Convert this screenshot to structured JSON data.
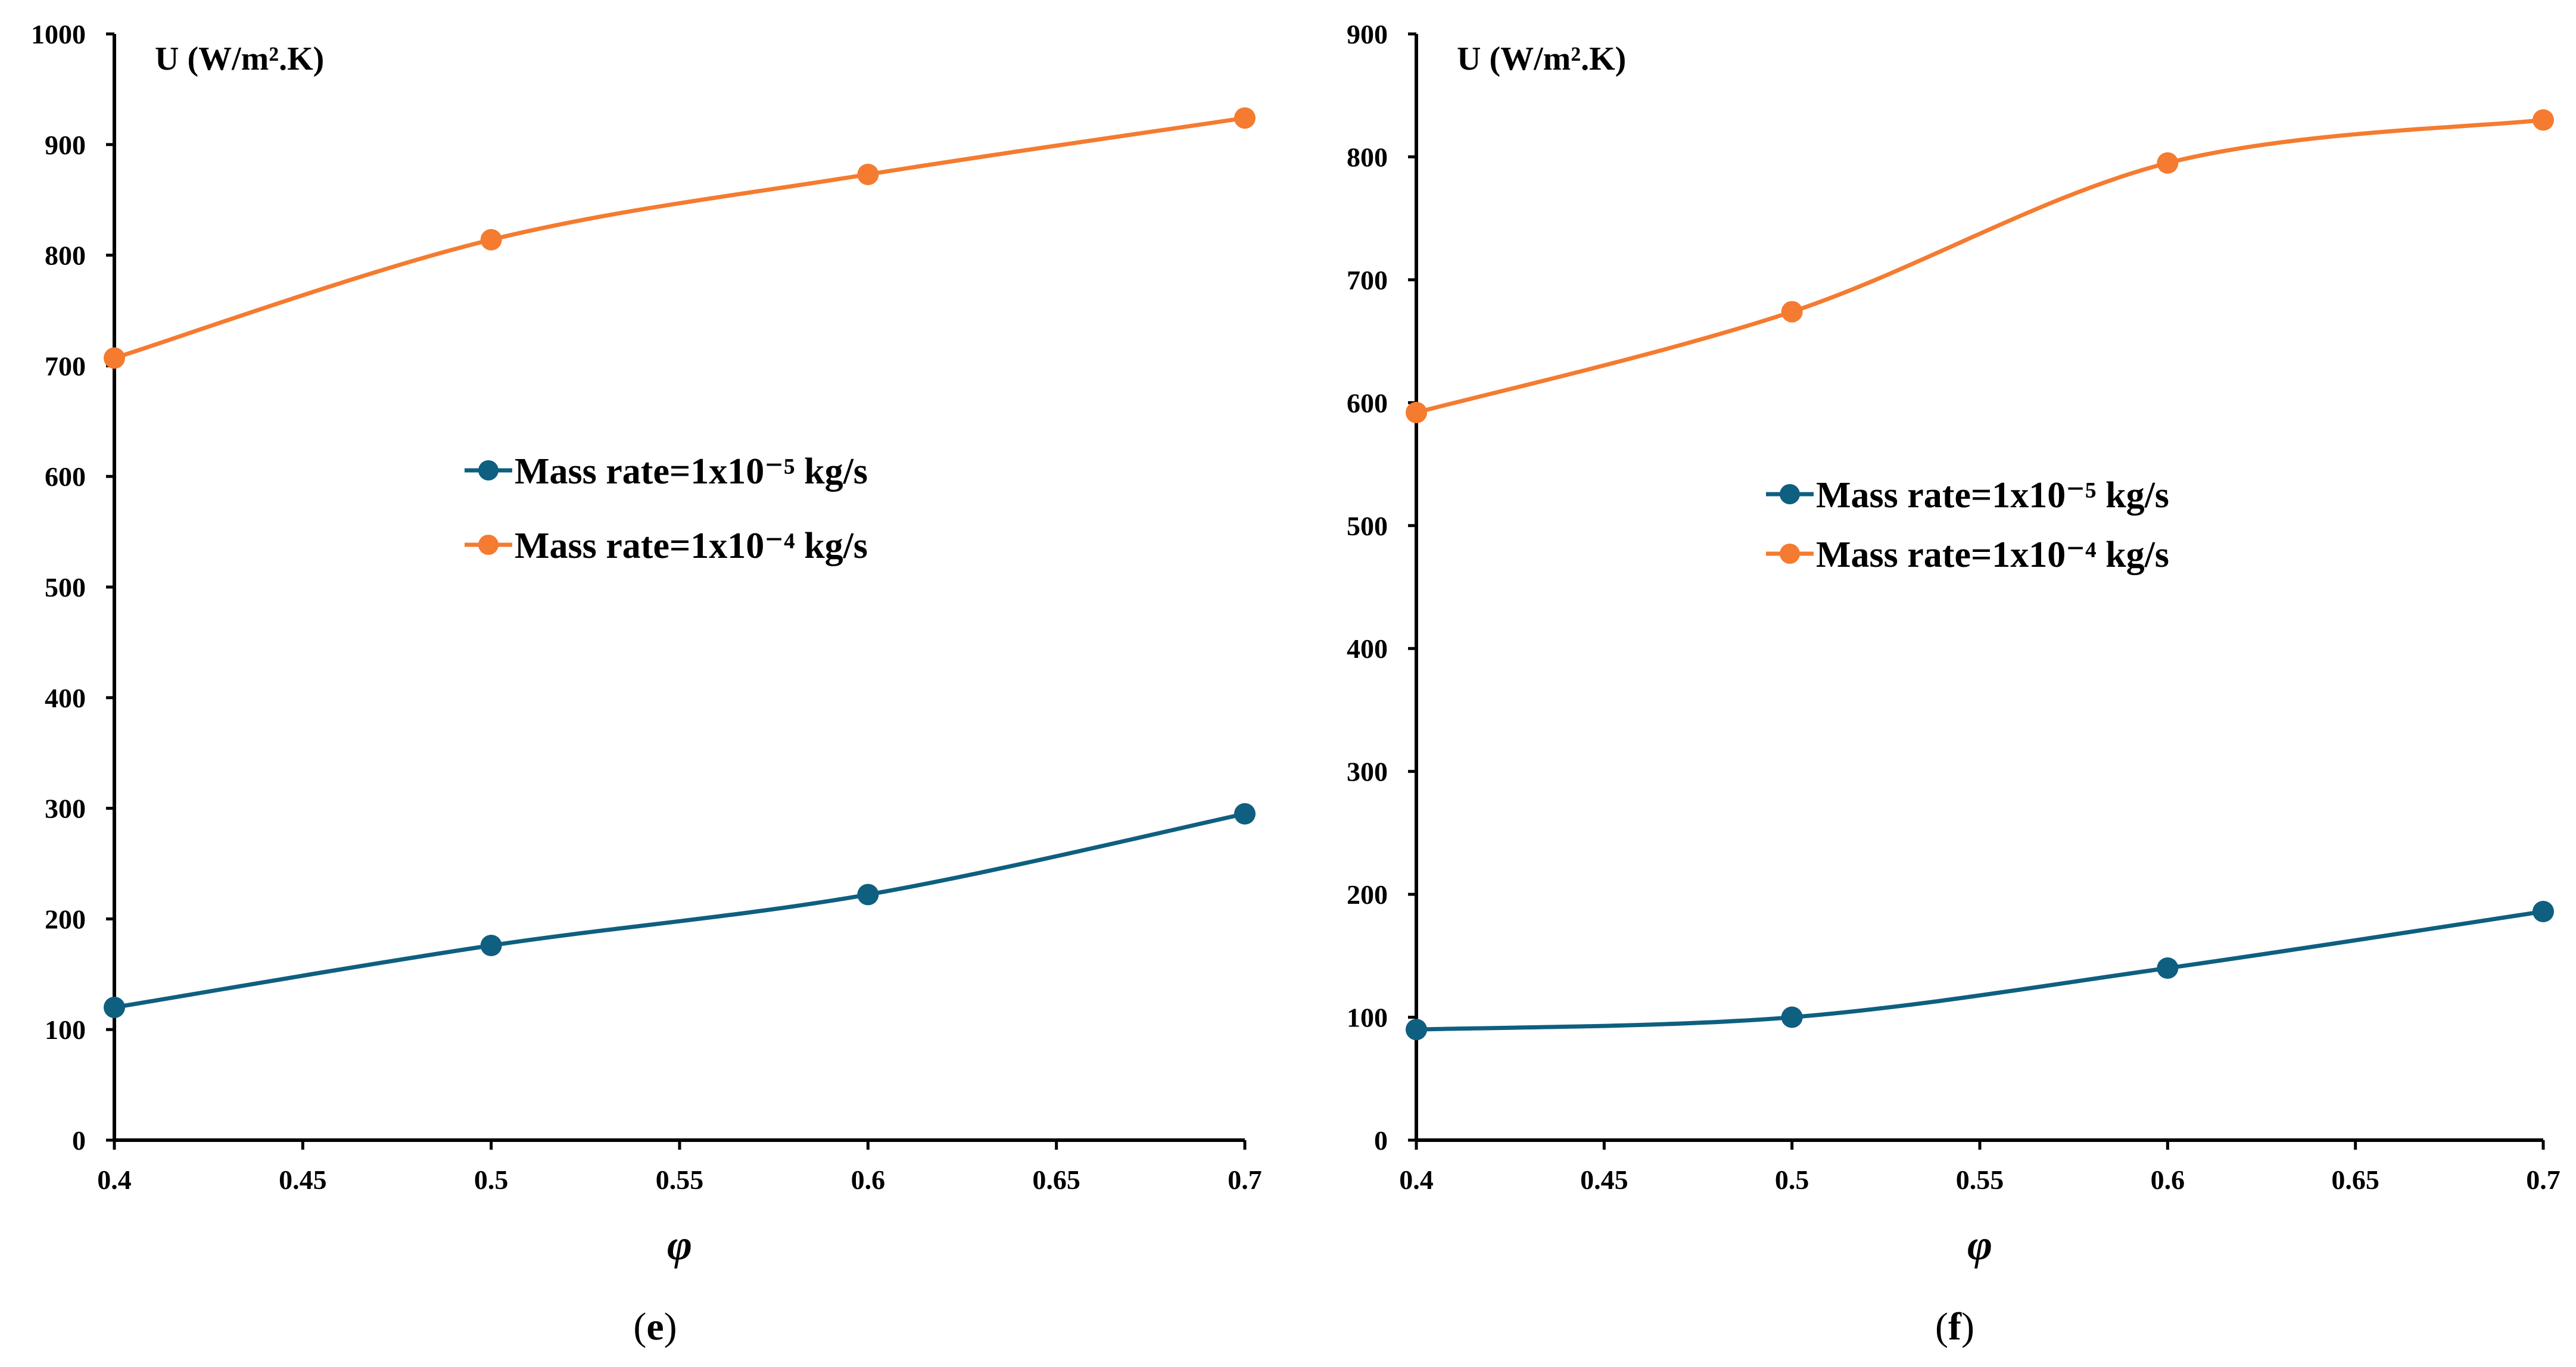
{
  "chart_data": [
    {
      "type": "line",
      "caption": "e",
      "ylabel": "U (W/m².K)",
      "xlabel": "φ",
      "xlim": [
        0.4,
        0.7
      ],
      "ylim": [
        0,
        1000
      ],
      "x_ticks": [
        "0.4",
        "0.45",
        "0.5",
        "0.55",
        "0.6",
        "0.65",
        "0.7"
      ],
      "y_ticks": [
        "0",
        "100",
        "200",
        "300",
        "400",
        "500",
        "600",
        "700",
        "800",
        "900",
        "1000"
      ],
      "x": [
        0.4,
        0.5,
        0.6,
        0.7
      ],
      "legend_position": "center",
      "series": [
        {
          "name": "Mass rate=1x10⁻⁵ kg/s",
          "color": "#0e5f80",
          "values": [
            120,
            176,
            222,
            295
          ]
        },
        {
          "name": "Mass rate=1x10⁻⁴ kg/s",
          "color": "#f47b30",
          "values": [
            707,
            814,
            873,
            924
          ]
        }
      ]
    },
    {
      "type": "line",
      "caption": "f",
      "ylabel": "U (W/m².K)",
      "xlabel": "φ",
      "xlim": [
        0.4,
        0.7
      ],
      "ylim": [
        0,
        900
      ],
      "x_ticks": [
        "0.4",
        "0.45",
        "0.5",
        "0.55",
        "0.6",
        "0.65",
        "0.7"
      ],
      "y_ticks": [
        "0",
        "100",
        "200",
        "300",
        "400",
        "500",
        "600",
        "700",
        "800",
        "900"
      ],
      "x": [
        0.4,
        0.5,
        0.6,
        0.7
      ],
      "legend_position": "center",
      "series": [
        {
          "name": "Mass rate=1x10⁻⁵ kg/s",
          "color": "#0e5f80",
          "values": [
            90,
            100,
            140,
            186
          ]
        },
        {
          "name": "Mass rate=1x10⁻⁴ kg/s",
          "color": "#f47b30",
          "values": [
            592,
            674,
            795,
            830
          ]
        }
      ]
    }
  ]
}
